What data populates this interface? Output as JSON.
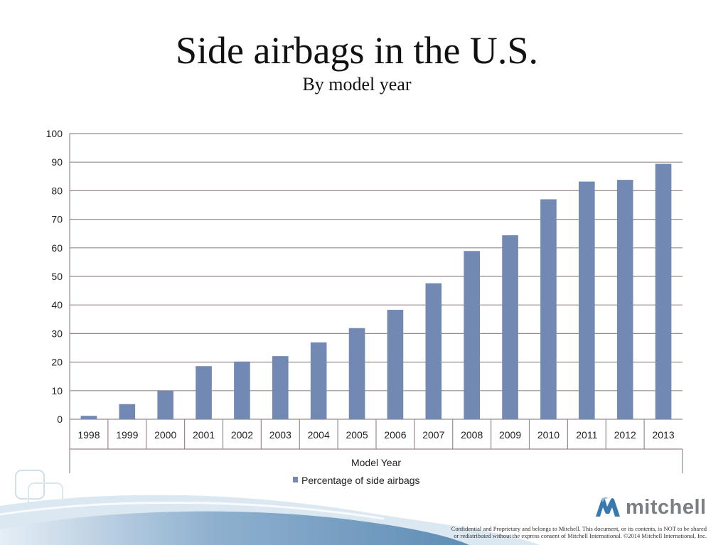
{
  "slide": {
    "title": "Side airbags in the U.S.",
    "subtitle": "By model year",
    "logo_text": "mitchell",
    "disclaimer_line1": "Confidential and Proprietary and belongs to Mitchell. This document, or its contents, is NOT to be shared",
    "disclaimer_line2": "or redistributed without the express consent of Mitchell International. ©2014 Mitchell International, Inc."
  },
  "colors": {
    "bar": "#7189b3",
    "gridline": "#9a8a8a",
    "wave_dark": "#7fa3c4",
    "wave_light": "#c6d9e8",
    "logo_blue": "#3a78b0"
  },
  "chart_data": {
    "type": "bar",
    "title": "Side airbags in the U.S.",
    "subtitle": "By model year",
    "categories": [
      "1998",
      "1999",
      "2000",
      "2001",
      "2002",
      "2003",
      "2004",
      "2005",
      "2006",
      "2007",
      "2008",
      "2009",
      "2010",
      "2011",
      "2012",
      "2013"
    ],
    "series": [
      {
        "name": "Percentage of side airbags",
        "values": [
          1.2,
          5.3,
          10.0,
          18.6,
          20.2,
          22.1,
          26.9,
          31.9,
          38.3,
          47.6,
          58.9,
          64.4,
          77.0,
          83.2,
          83.8,
          89.4
        ]
      }
    ],
    "xlabel": "Model Year",
    "ylabel": "",
    "ylim": [
      0,
      100
    ],
    "yticks": [
      "0",
      "10",
      "20",
      "30",
      "40",
      "50",
      "60",
      "70",
      "80",
      "90",
      "100"
    ],
    "grid": true,
    "legend": "bottom"
  }
}
